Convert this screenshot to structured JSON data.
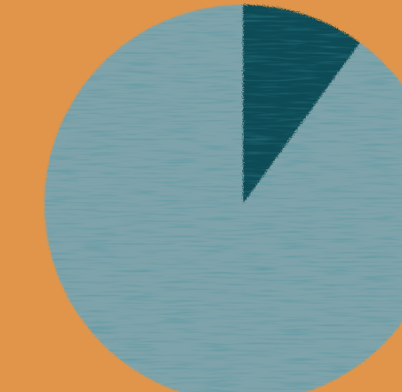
{
  "colors": {
    "background": "#E0954A",
    "slice_major": "#7FA3AB",
    "slice_minor": "#0D4B57"
  },
  "chart_data": {
    "type": "pie",
    "title": "",
    "slices": [
      {
        "label": "",
        "value": 10,
        "color": "#0D4B57"
      },
      {
        "label": "",
        "value": 90,
        "color": "#7FA3AB"
      }
    ],
    "start_angle_deg": 0,
    "direction": "clockwise",
    "legend": "none",
    "data_labels": "none",
    "style": "hand-drawn chalk texture"
  }
}
